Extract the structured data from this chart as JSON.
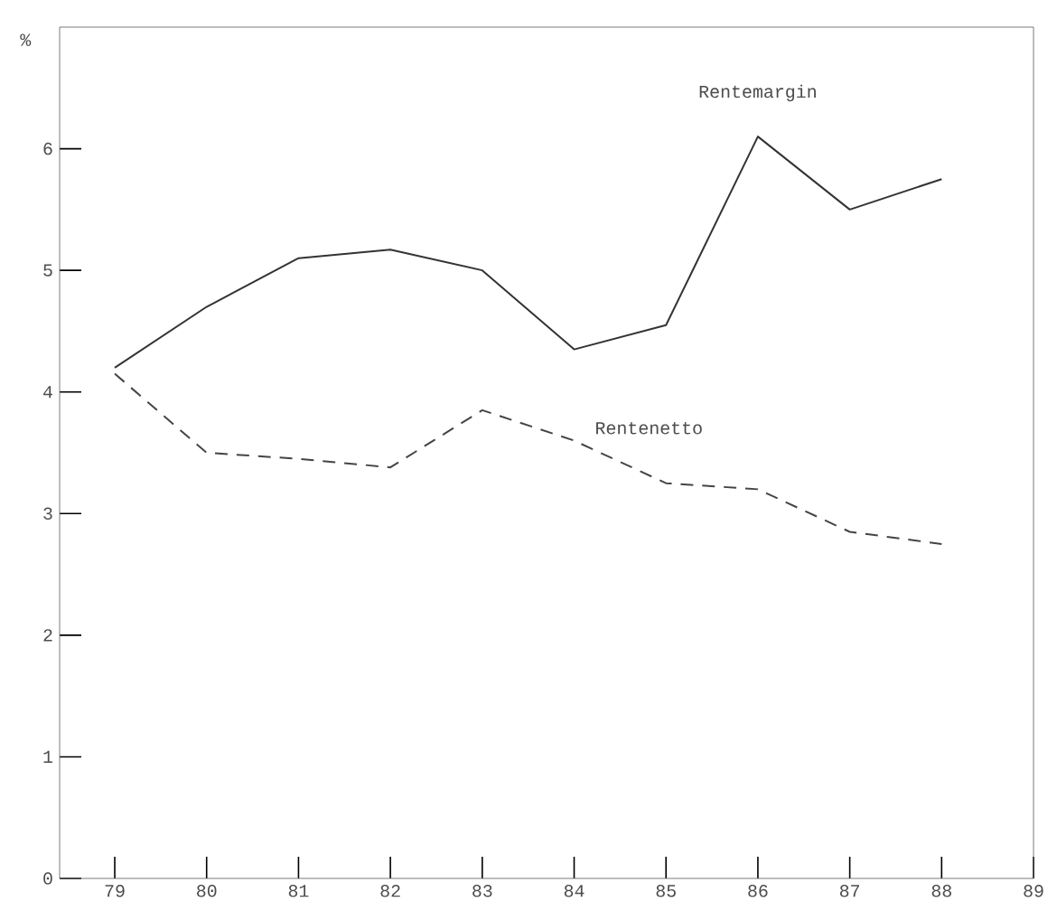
{
  "chart_data": {
    "type": "line",
    "ylabel": "%",
    "x": [
      79,
      80,
      81,
      82,
      83,
      84,
      85,
      86,
      87,
      88
    ],
    "series": [
      {
        "name": "Rentemargin",
        "color": "#333333",
        "line_style": "solid",
        "values": [
          4.2,
          4.7,
          5.1,
          5.17,
          5.0,
          4.35,
          4.55,
          6.1,
          5.5,
          5.75
        ]
      },
      {
        "name": "Rentenetto",
        "color": "#444444",
        "line_style": "dashed",
        "values": [
          4.15,
          3.5,
          3.45,
          3.38,
          3.85,
          3.6,
          3.25,
          3.2,
          2.85,
          2.75
        ]
      }
    ],
    "xlim": [
      78.4,
      89
    ],
    "xticks": [
      79,
      80,
      81,
      82,
      83,
      84,
      85,
      86,
      87,
      88,
      89
    ],
    "ylim": [
      0,
      7
    ],
    "yticks": [
      0,
      1,
      2,
      3,
      4,
      5,
      6
    ],
    "grid": false,
    "marker": "none"
  }
}
